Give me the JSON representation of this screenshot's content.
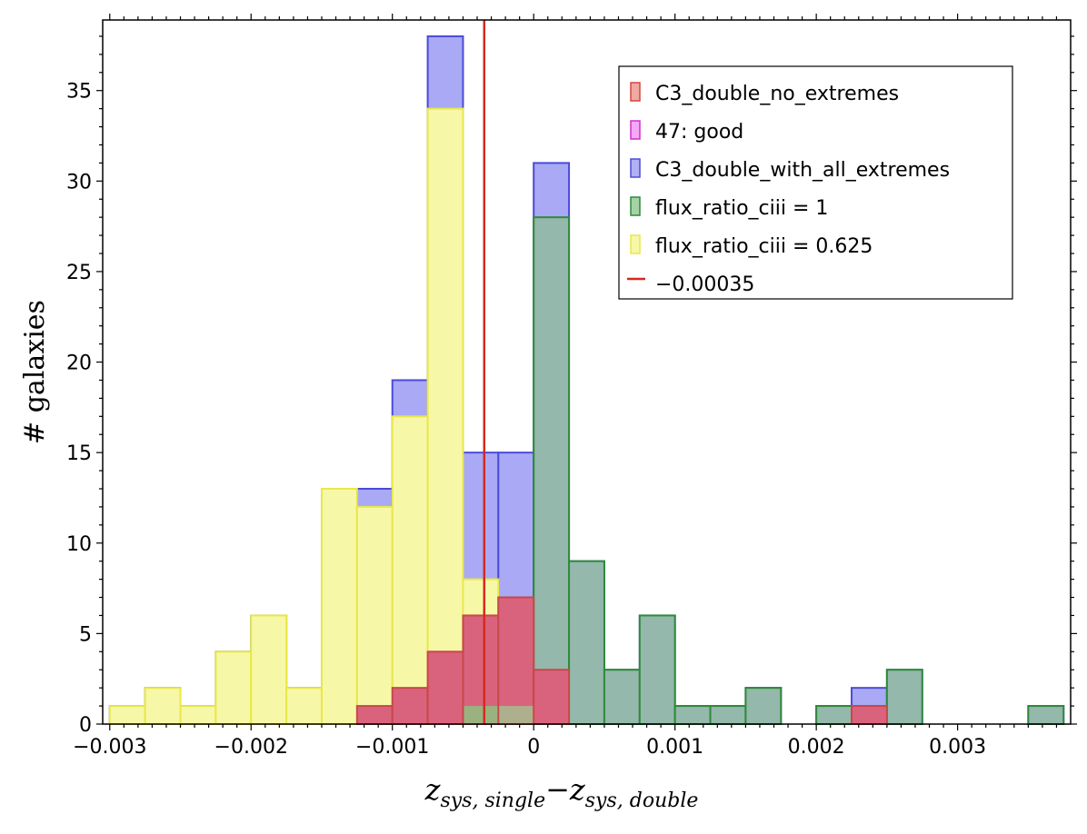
{
  "chart_data": {
    "type": "bar",
    "title": "",
    "ylabel": "# galaxies",
    "xlabel": {
      "z1": "z",
      "sub1": "sys, single",
      "minus": "−",
      "z2": "z",
      "sub2": "sys, double"
    },
    "xlim": [
      -0.00305,
      0.0038
    ],
    "ylim": [
      0,
      38.9
    ],
    "bin_width": 0.00025,
    "x_ticks": [
      -0.003,
      -0.002,
      -0.001,
      0,
      0.001,
      0.002,
      0.003
    ],
    "x_tick_labels": [
      "−0.003",
      "−0.002",
      "−0.001",
      "0",
      "0.001",
      "0.002",
      "0.003"
    ],
    "y_ticks": [
      0,
      5,
      10,
      15,
      20,
      25,
      30,
      35
    ],
    "y_tick_labels": [
      "0",
      "5",
      "10",
      "15",
      "20",
      "25",
      "30",
      "35"
    ],
    "grid": false,
    "legend_position": "top-right",
    "series": [
      {
        "name": "C3_double_with_all_extremes",
        "fill": "#a9a9f5",
        "stroke": "#4b4bdc",
        "bins": [
          [
            -0.003,
            1
          ],
          [
            -0.00275,
            2
          ],
          [
            -0.0025,
            1
          ],
          [
            -0.00225,
            4
          ],
          [
            -0.002,
            6
          ],
          [
            -0.00175,
            2
          ],
          [
            -0.0015,
            13
          ],
          [
            -0.00125,
            13
          ],
          [
            -0.001,
            19
          ],
          [
            -0.00075,
            38
          ],
          [
            -0.0005,
            15
          ],
          [
            -0.00025,
            15
          ],
          [
            0,
            31
          ],
          [
            0.00025,
            9
          ],
          [
            0.0005,
            3
          ],
          [
            0.00075,
            6
          ],
          [
            0.001,
            1
          ],
          [
            0.00125,
            1
          ],
          [
            0.0015,
            2
          ],
          [
            0.002,
            1
          ],
          [
            0.00225,
            2
          ],
          [
            0.0025,
            3
          ],
          [
            0.0035,
            1
          ]
        ]
      },
      {
        "name": "flux_ratio_ciii = 0.625",
        "fill": "#f7f7a8",
        "stroke": "#e8e84a",
        "bins": [
          [
            -0.003,
            1
          ],
          [
            -0.00275,
            2
          ],
          [
            -0.0025,
            1
          ],
          [
            -0.00225,
            4
          ],
          [
            -0.002,
            6
          ],
          [
            -0.00175,
            2
          ],
          [
            -0.0015,
            13
          ],
          [
            -0.00125,
            12
          ],
          [
            -0.001,
            17
          ],
          [
            -0.00075,
            34
          ],
          [
            -0.0005,
            8
          ],
          [
            -0.00025,
            1
          ]
        ]
      },
      {
        "name": "flux_ratio_ciii = 1",
        "fill": "#94b8ab",
        "stroke": "#2f8a3a",
        "bins": [
          [
            -0.0005,
            1
          ],
          [
            -0.00025,
            7
          ],
          [
            0,
            28
          ],
          [
            0.00025,
            9
          ],
          [
            0.0005,
            3
          ],
          [
            0.00075,
            6
          ],
          [
            0.001,
            1
          ],
          [
            0.00125,
            1
          ],
          [
            0.0015,
            2
          ],
          [
            0.002,
            1
          ],
          [
            0.00225,
            1
          ],
          [
            0.0025,
            3
          ],
          [
            0.0035,
            1
          ]
        ]
      },
      {
        "name": "C3_double_no_extremes",
        "fill": "#d9637d",
        "stroke": "#c84848",
        "bins": [
          [
            -0.00125,
            1
          ],
          [
            -0.001,
            2
          ],
          [
            -0.00075,
            4
          ],
          [
            -0.0005,
            6
          ],
          [
            -0.00025,
            7
          ],
          [
            0,
            3
          ],
          [
            0.00225,
            1
          ]
        ]
      }
    ],
    "overlay_fills": [
      {
        "x": -0.0005,
        "count": 1,
        "color": "#9ab27f"
      },
      {
        "x": -0.00025,
        "count": 1,
        "color": "#aeb08d"
      }
    ],
    "vline": {
      "x": -0.00035,
      "name": "−0.00035",
      "color": "#d42a20"
    },
    "legend": [
      {
        "label": "C3_double_no_extremes",
        "fill": "#f1a8a0",
        "stroke": "#d04a40",
        "kind": "patch"
      },
      {
        "label": "47: good",
        "fill": "#f5a8f5",
        "stroke": "#cc33cc",
        "kind": "patch"
      },
      {
        "label": "C3_double_with_all_extremes",
        "fill": "#b0b0f2",
        "stroke": "#4b4bdc",
        "kind": "patch"
      },
      {
        "label": "flux_ratio_ciii = 1",
        "fill": "#a6d3a6",
        "stroke": "#2f8a3a",
        "kind": "patch"
      },
      {
        "label": "flux_ratio_ciii = 0.625",
        "fill": "#f7f7a8",
        "stroke": "#e8e84a",
        "kind": "patch"
      },
      {
        "label": "−0.00035",
        "fill": "none",
        "stroke": "#d42a20",
        "kind": "line"
      }
    ]
  }
}
